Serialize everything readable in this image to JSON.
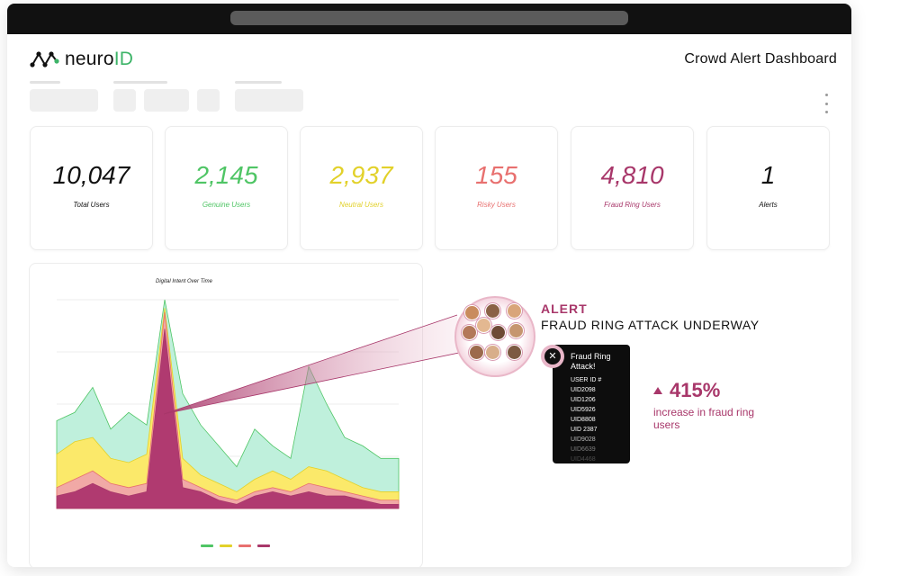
{
  "app": {
    "logo_main": "neuro",
    "logo_accent": "ID",
    "page_title": "Crowd Alert Dashboard"
  },
  "metrics": [
    {
      "value": "10,047",
      "label": "Total Users",
      "color": "#111111"
    },
    {
      "value": "2,145",
      "label": "Genuine Users",
      "color": "#4fc565"
    },
    {
      "value": "2,937",
      "label": "Neutral Users",
      "color": "#e2d12a"
    },
    {
      "value": "155",
      "label": "Risky Users",
      "color": "#e8706f"
    },
    {
      "value": "4,810",
      "label": "Fraud Ring Users",
      "color": "#a8376a"
    },
    {
      "value": "1",
      "label": "Alerts",
      "color": "#111111"
    }
  ],
  "chart_data": {
    "type": "area",
    "title": "Digital Intent Over Time",
    "xlabel": "",
    "ylabel": "",
    "x": [
      0,
      1,
      2,
      3,
      4,
      5,
      6,
      7,
      8,
      9,
      10,
      11,
      12,
      13,
      14,
      15,
      16,
      17,
      18,
      19
    ],
    "ylim": [
      0,
      100
    ],
    "grid": true,
    "legend": "bottom-center",
    "series": [
      {
        "color": "#4fc565",
        "fill": "#bff0dc",
        "values": [
          42,
          46,
          58,
          38,
          46,
          40,
          100,
          55,
          40,
          30,
          20,
          38,
          30,
          24,
          68,
          50,
          34,
          30,
          24,
          24
        ]
      },
      {
        "color": "#e2d12a",
        "fill": "#fbe96a",
        "values": [
          26,
          32,
          34,
          24,
          22,
          26,
          96,
          24,
          16,
          12,
          8,
          14,
          18,
          14,
          20,
          18,
          14,
          10,
          8,
          8
        ]
      },
      {
        "color": "#e8706f",
        "fill": "#f1a9a6",
        "values": [
          10,
          14,
          18,
          12,
          10,
          12,
          94,
          14,
          10,
          6,
          4,
          8,
          10,
          8,
          12,
          10,
          8,
          6,
          4,
          4
        ]
      },
      {
        "color": "#a8376a",
        "fill": "#b03a70",
        "values": [
          6,
          8,
          12,
          8,
          6,
          8,
          86,
          10,
          8,
          4,
          2,
          6,
          8,
          6,
          8,
          6,
          6,
          4,
          2,
          2
        ]
      }
    ]
  },
  "alert": {
    "heading": "ALERT",
    "subheading": "FRAUD RING ATTACK UNDERWAY",
    "tooltip_title": "Fraud Ring Attack!",
    "user_ids": [
      "USER ID #",
      "UID2098",
      "UID1206",
      "UID5926",
      "UID8808",
      "UID 2387",
      "UID9028",
      "UID6639",
      "UID4468"
    ],
    "increase_value": "415%",
    "increase_desc": "increase in fraud ring users"
  },
  "colors": {
    "accent": "#a8376a",
    "brand_green": "#3db468"
  }
}
